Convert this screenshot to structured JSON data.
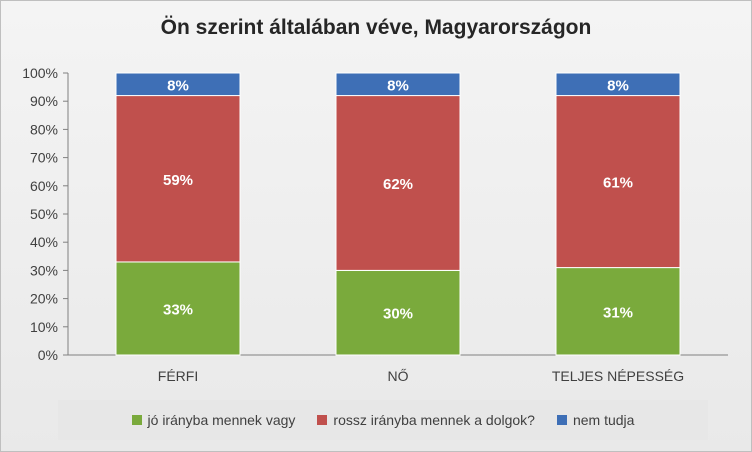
{
  "chart_data": {
    "type": "bar",
    "stacked": true,
    "title": "Ön szerint általában véve, Magyarországon",
    "categories": [
      "FÉRFI",
      "NŐ",
      "TELJES NÉPESSÉG"
    ],
    "series": [
      {
        "name": "jó irányba mennek vagy",
        "color": "#7aaa3c",
        "values": [
          33,
          30,
          31
        ],
        "labels": [
          "33%",
          "30%",
          "31%"
        ]
      },
      {
        "name": "rossz irányba mennek a dolgok?",
        "color": "#c0504d",
        "values": [
          59,
          62,
          61
        ],
        "labels": [
          "59%",
          "62%",
          "61%"
        ]
      },
      {
        "name": "nem tudja",
        "color": "#3e6fb6",
        "values": [
          8,
          8,
          8
        ],
        "labels": [
          "8%",
          "8%",
          "8%"
        ]
      }
    ],
    "y_ticks": [
      "0%",
      "10%",
      "20%",
      "30%",
      "40%",
      "50%",
      "60%",
      "70%",
      "80%",
      "90%",
      "100%"
    ],
    "ylim": [
      0,
      100
    ],
    "grid": false,
    "legend_position": "bottom"
  }
}
